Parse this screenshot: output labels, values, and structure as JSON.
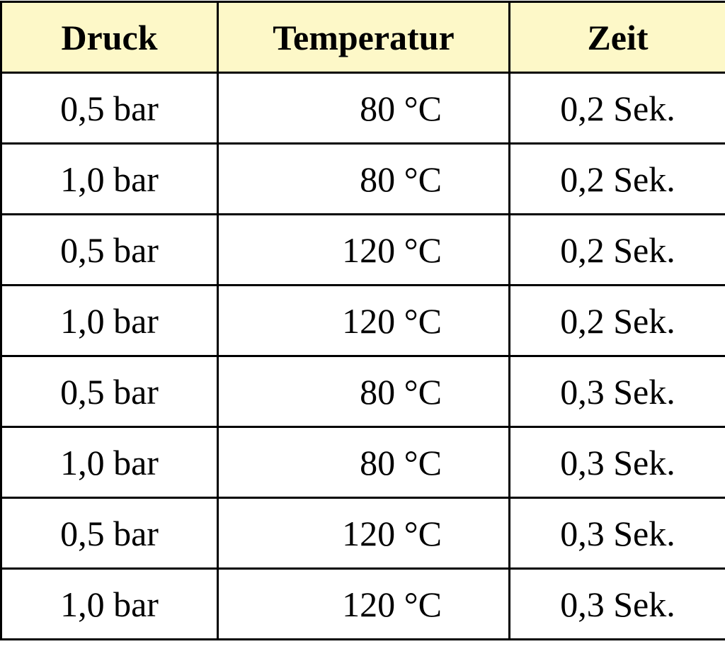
{
  "table": {
    "header": [
      "Druck",
      "Temperatur",
      "Zeit"
    ],
    "rows": [
      [
        "0,5 bar",
        "80 °C",
        "0,2 Sek."
      ],
      [
        "1,0 bar",
        "80 °C",
        "0,2 Sek."
      ],
      [
        "0,5 bar",
        "120 °C",
        "0,2 Sek."
      ],
      [
        "1,0 bar",
        "120 °C",
        "0,2 Sek."
      ],
      [
        "0,5 bar",
        "80 °C",
        "0,3 Sek."
      ],
      [
        "1,0 bar",
        "80 °C",
        "0,3 Sek."
      ],
      [
        "0,5 bar",
        "120 °C",
        "0,3 Sek."
      ],
      [
        "1,0 bar",
        "120 °C",
        "0,3 Sek."
      ]
    ]
  }
}
